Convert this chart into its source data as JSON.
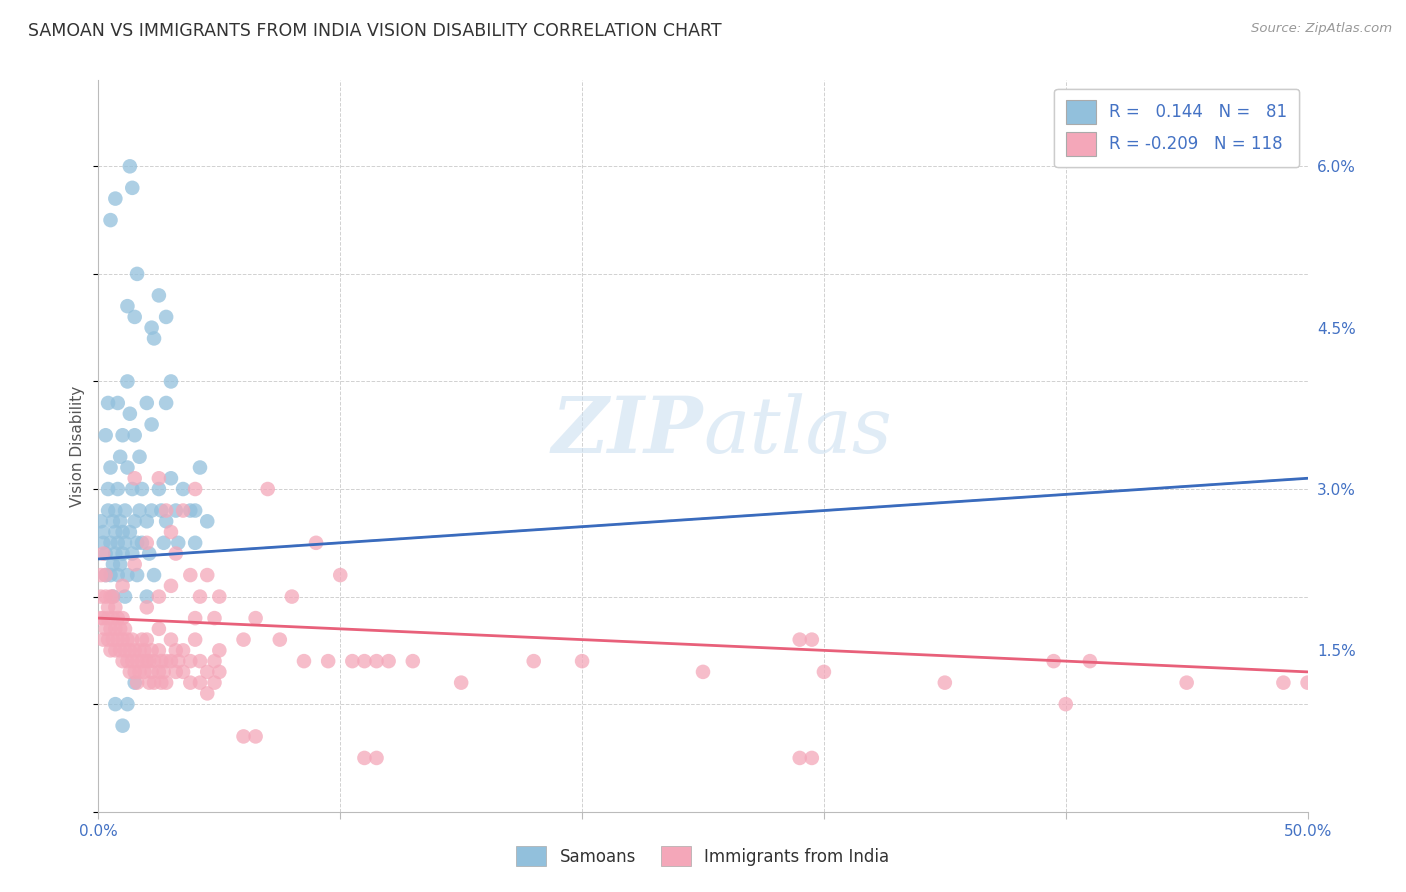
{
  "title": "SAMOAN VS IMMIGRANTS FROM INDIA VISION DISABILITY CORRELATION CHART",
  "source": "Source: ZipAtlas.com",
  "ylabel": "Vision Disability",
  "y_ticks": [
    0.015,
    0.03,
    0.045,
    0.06
  ],
  "y_tick_labels": [
    "1.5%",
    "3.0%",
    "4.5%",
    "6.0%"
  ],
  "xlim": [
    0.0,
    0.5
  ],
  "ylim": [
    0.0,
    0.068
  ],
  "legend_bottom": [
    "Samoans",
    "Immigrants from India"
  ],
  "samoans_color": "#92C0DC",
  "india_color": "#F4A7B9",
  "samoans_trend_color": "#3A6BBD",
  "samoans_dash_color": "#A8C8E8",
  "india_trend_color": "#E8607A",
  "watermark": "ZIPatlas",
  "background_color": "#ffffff",
  "samoan_line_x0": 0.0,
  "samoan_line_y0": 0.0235,
  "samoan_line_x1": 0.5,
  "samoan_line_y1": 0.031,
  "india_line_x0": 0.0,
  "india_line_y0": 0.018,
  "india_line_x1": 0.5,
  "india_line_y1": 0.013,
  "samoans_points": [
    [
      0.001,
      0.027
    ],
    [
      0.002,
      0.025
    ],
    [
      0.002,
      0.026
    ],
    [
      0.003,
      0.022
    ],
    [
      0.003,
      0.024
    ],
    [
      0.003,
      0.035
    ],
    [
      0.004,
      0.028
    ],
    [
      0.004,
      0.03
    ],
    [
      0.004,
      0.038
    ],
    [
      0.005,
      0.032
    ],
    [
      0.005,
      0.025
    ],
    [
      0.005,
      0.022
    ],
    [
      0.006,
      0.027
    ],
    [
      0.006,
      0.023
    ],
    [
      0.006,
      0.02
    ],
    [
      0.007,
      0.026
    ],
    [
      0.007,
      0.024
    ],
    [
      0.007,
      0.028
    ],
    [
      0.008,
      0.025
    ],
    [
      0.008,
      0.022
    ],
    [
      0.008,
      0.03
    ],
    [
      0.009,
      0.023
    ],
    [
      0.009,
      0.027
    ],
    [
      0.009,
      0.033
    ],
    [
      0.01,
      0.024
    ],
    [
      0.01,
      0.026
    ],
    [
      0.01,
      0.035
    ],
    [
      0.011,
      0.025
    ],
    [
      0.011,
      0.02
    ],
    [
      0.011,
      0.028
    ],
    [
      0.012,
      0.032
    ],
    [
      0.012,
      0.022
    ],
    [
      0.012,
      0.04
    ],
    [
      0.013,
      0.026
    ],
    [
      0.013,
      0.037
    ],
    [
      0.013,
      0.06
    ],
    [
      0.014,
      0.024
    ],
    [
      0.014,
      0.03
    ],
    [
      0.014,
      0.058
    ],
    [
      0.015,
      0.027
    ],
    [
      0.015,
      0.035
    ],
    [
      0.016,
      0.025
    ],
    [
      0.016,
      0.022
    ],
    [
      0.016,
      0.05
    ],
    [
      0.017,
      0.028
    ],
    [
      0.017,
      0.033
    ],
    [
      0.018,
      0.03
    ],
    [
      0.018,
      0.025
    ],
    [
      0.02,
      0.02
    ],
    [
      0.02,
      0.027
    ],
    [
      0.021,
      0.024
    ],
    [
      0.022,
      0.036
    ],
    [
      0.022,
      0.028
    ],
    [
      0.022,
      0.045
    ],
    [
      0.023,
      0.022
    ],
    [
      0.023,
      0.044
    ],
    [
      0.025,
      0.03
    ],
    [
      0.025,
      0.048
    ],
    [
      0.026,
      0.028
    ],
    [
      0.027,
      0.025
    ],
    [
      0.028,
      0.027
    ],
    [
      0.028,
      0.046
    ],
    [
      0.03,
      0.04
    ],
    [
      0.03,
      0.031
    ],
    [
      0.032,
      0.028
    ],
    [
      0.033,
      0.025
    ],
    [
      0.035,
      0.03
    ],
    [
      0.038,
      0.028
    ],
    [
      0.04,
      0.025
    ],
    [
      0.04,
      0.028
    ],
    [
      0.042,
      0.032
    ],
    [
      0.045,
      0.027
    ],
    [
      0.007,
      0.01
    ],
    [
      0.01,
      0.008
    ],
    [
      0.012,
      0.01
    ],
    [
      0.015,
      0.012
    ],
    [
      0.005,
      0.055
    ],
    [
      0.007,
      0.057
    ],
    [
      0.008,
      0.038
    ],
    [
      0.012,
      0.047
    ],
    [
      0.015,
      0.046
    ],
    [
      0.02,
      0.038
    ],
    [
      0.028,
      0.038
    ]
  ],
  "india_points": [
    [
      0.001,
      0.022
    ],
    [
      0.001,
      0.02
    ],
    [
      0.001,
      0.018
    ],
    [
      0.002,
      0.018
    ],
    [
      0.002,
      0.024
    ],
    [
      0.002,
      0.016
    ],
    [
      0.003,
      0.02
    ],
    [
      0.003,
      0.017
    ],
    [
      0.003,
      0.022
    ],
    [
      0.004,
      0.019
    ],
    [
      0.004,
      0.016
    ],
    [
      0.004,
      0.018
    ],
    [
      0.005,
      0.02
    ],
    [
      0.005,
      0.017
    ],
    [
      0.005,
      0.015
    ],
    [
      0.006,
      0.018
    ],
    [
      0.006,
      0.016
    ],
    [
      0.006,
      0.02
    ],
    [
      0.007,
      0.017
    ],
    [
      0.007,
      0.019
    ],
    [
      0.007,
      0.015
    ],
    [
      0.008,
      0.016
    ],
    [
      0.008,
      0.018
    ],
    [
      0.009,
      0.015
    ],
    [
      0.009,
      0.017
    ],
    [
      0.01,
      0.018
    ],
    [
      0.01,
      0.016
    ],
    [
      0.01,
      0.014
    ],
    [
      0.01,
      0.021
    ],
    [
      0.011,
      0.015
    ],
    [
      0.011,
      0.017
    ],
    [
      0.012,
      0.016
    ],
    [
      0.012,
      0.014
    ],
    [
      0.013,
      0.015
    ],
    [
      0.013,
      0.013
    ],
    [
      0.014,
      0.016
    ],
    [
      0.014,
      0.014
    ],
    [
      0.015,
      0.015
    ],
    [
      0.015,
      0.013
    ],
    [
      0.015,
      0.023
    ],
    [
      0.015,
      0.031
    ],
    [
      0.016,
      0.014
    ],
    [
      0.016,
      0.012
    ],
    [
      0.017,
      0.015
    ],
    [
      0.017,
      0.013
    ],
    [
      0.018,
      0.016
    ],
    [
      0.018,
      0.014
    ],
    [
      0.019,
      0.015
    ],
    [
      0.019,
      0.013
    ],
    [
      0.02,
      0.014
    ],
    [
      0.02,
      0.016
    ],
    [
      0.02,
      0.025
    ],
    [
      0.02,
      0.019
    ],
    [
      0.021,
      0.012
    ],
    [
      0.021,
      0.014
    ],
    [
      0.022,
      0.013
    ],
    [
      0.022,
      0.015
    ],
    [
      0.023,
      0.014
    ],
    [
      0.023,
      0.012
    ],
    [
      0.025,
      0.013
    ],
    [
      0.025,
      0.015
    ],
    [
      0.025,
      0.017
    ],
    [
      0.025,
      0.02
    ],
    [
      0.026,
      0.014
    ],
    [
      0.026,
      0.012
    ],
    [
      0.027,
      0.013
    ],
    [
      0.028,
      0.014
    ],
    [
      0.028,
      0.012
    ],
    [
      0.03,
      0.016
    ],
    [
      0.03,
      0.014
    ],
    [
      0.03,
      0.021
    ],
    [
      0.032,
      0.013
    ],
    [
      0.032,
      0.015
    ],
    [
      0.033,
      0.014
    ],
    [
      0.035,
      0.013
    ],
    [
      0.035,
      0.015
    ],
    [
      0.038,
      0.014
    ],
    [
      0.038,
      0.012
    ],
    [
      0.04,
      0.018
    ],
    [
      0.04,
      0.016
    ],
    [
      0.042,
      0.014
    ],
    [
      0.042,
      0.012
    ],
    [
      0.045,
      0.013
    ],
    [
      0.045,
      0.011
    ],
    [
      0.048,
      0.014
    ],
    [
      0.048,
      0.012
    ],
    [
      0.05,
      0.013
    ],
    [
      0.05,
      0.015
    ],
    [
      0.025,
      0.031
    ],
    [
      0.028,
      0.028
    ],
    [
      0.03,
      0.026
    ],
    [
      0.032,
      0.024
    ],
    [
      0.035,
      0.028
    ],
    [
      0.038,
      0.022
    ],
    [
      0.04,
      0.03
    ],
    [
      0.042,
      0.02
    ],
    [
      0.045,
      0.022
    ],
    [
      0.048,
      0.018
    ],
    [
      0.05,
      0.02
    ],
    [
      0.06,
      0.016
    ],
    [
      0.065,
      0.018
    ],
    [
      0.07,
      0.03
    ],
    [
      0.075,
      0.016
    ],
    [
      0.08,
      0.02
    ],
    [
      0.085,
      0.014
    ],
    [
      0.09,
      0.025
    ],
    [
      0.095,
      0.014
    ],
    [
      0.1,
      0.022
    ],
    [
      0.105,
      0.014
    ],
    [
      0.11,
      0.014
    ],
    [
      0.115,
      0.014
    ],
    [
      0.12,
      0.014
    ],
    [
      0.13,
      0.014
    ],
    [
      0.15,
      0.012
    ],
    [
      0.18,
      0.014
    ],
    [
      0.2,
      0.014
    ],
    [
      0.25,
      0.013
    ],
    [
      0.29,
      0.016
    ],
    [
      0.295,
      0.016
    ],
    [
      0.3,
      0.013
    ],
    [
      0.35,
      0.012
    ],
    [
      0.395,
      0.014
    ],
    [
      0.4,
      0.01
    ],
    [
      0.41,
      0.014
    ],
    [
      0.45,
      0.012
    ],
    [
      0.49,
      0.012
    ],
    [
      0.5,
      0.012
    ],
    [
      0.06,
      0.007
    ],
    [
      0.065,
      0.007
    ],
    [
      0.11,
      0.005
    ],
    [
      0.115,
      0.005
    ],
    [
      0.29,
      0.005
    ],
    [
      0.295,
      0.005
    ]
  ]
}
